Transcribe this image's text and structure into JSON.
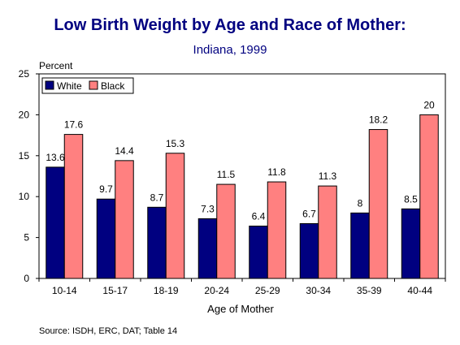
{
  "chart_data": {
    "type": "bar",
    "title": "Low Birth Weight by Age and Race of Mother:",
    "subtitle": "Indiana, 1999",
    "ylabel": "Percent",
    "xlabel": "Age of Mother",
    "ylim": [
      0,
      25
    ],
    "yticks": [
      0,
      5,
      10,
      15,
      20,
      25
    ],
    "grid": false,
    "legend_position": "top-left",
    "categories": [
      "10-14",
      "15-17",
      "18-19",
      "20-24",
      "25-29",
      "30-34",
      "35-39",
      "40-44"
    ],
    "series": [
      {
        "name": "White",
        "color": "#000080",
        "values": [
          13.6,
          9.7,
          8.7,
          7.3,
          6.4,
          6.7,
          8,
          8.5
        ],
        "labels": [
          "13.6",
          "9.7",
          "8.7",
          "7.3",
          "6.4",
          "6.7",
          "8",
          "8.5"
        ]
      },
      {
        "name": "Black",
        "color": "#ff8080",
        "values": [
          17.6,
          14.4,
          15.3,
          11.5,
          11.8,
          11.3,
          18.2,
          20
        ],
        "labels": [
          "17.6",
          "14.4",
          "15.3",
          "11.5",
          "11.8",
          "11.3",
          "18.2",
          "20"
        ]
      }
    ],
    "source": "Source:  ISDH, ERC, DAT; Table 14"
  }
}
